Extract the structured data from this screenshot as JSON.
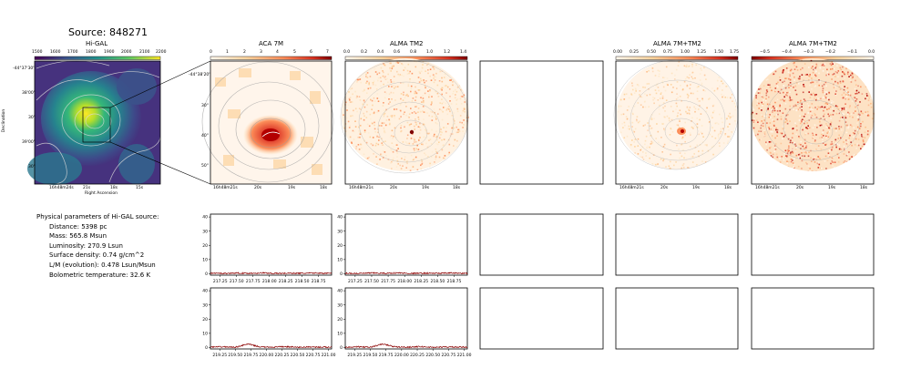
{
  "figure": {
    "title": "Source: 848271"
  },
  "panels": {
    "higal": {
      "title": "Hi-GAL",
      "xlabel": "Right Ascension",
      "ylabel": "Declination",
      "xticks": [
        "16h48m24s",
        "21s",
        "18s",
        "15s"
      ],
      "yticks": [
        "-44°37'30\"",
        "38'00\"",
        "30\"",
        "39'00\"",
        "30\""
      ],
      "colorbar": {
        "ticks": [
          "1500",
          "1600",
          "1700",
          "1800",
          "1900",
          "2000",
          "2100",
          "2200"
        ],
        "cmap": "viridis"
      }
    },
    "aca7m": {
      "title": "ACA 7M",
      "xticks": [
        "16h48m21s",
        "20s",
        "19s",
        "18s"
      ],
      "yticks": [
        "-44°38'20\"",
        "30\"",
        "40\"",
        "50\""
      ],
      "colorbar": {
        "ticks": [
          "0",
          "1",
          "2",
          "3",
          "4",
          "5",
          "6",
          "7"
        ],
        "cmap": "OrRd"
      }
    },
    "almatm2": {
      "title": "ALMA TM2",
      "xticks": [
        "16h48m21s",
        "20s",
        "19s",
        "18s"
      ],
      "colorbar": {
        "ticks": [
          "0.0",
          "0.2",
          "0.4",
          "0.6",
          "0.8",
          "1.0",
          "1.2",
          "1.4"
        ],
        "cmap": "OrRd"
      }
    },
    "alma7mtm2_a": {
      "title": "ALMA 7M+TM2",
      "xticks": [
        "16h48m21s",
        "20s",
        "19s",
        "18s"
      ],
      "colorbar": {
        "ticks": [
          "0.00",
          "0.25",
          "0.50",
          "0.75",
          "1.00",
          "1.25",
          "1.50",
          "1.75"
        ],
        "cmap": "OrRd"
      }
    },
    "alma7mtm2_b": {
      "title": "ALMA 7M+TM2",
      "xticks": [
        "16h48m21s",
        "20s",
        "19s",
        "18s"
      ],
      "colorbar": {
        "ticks": [
          "−0.5",
          "−0.4",
          "−0.3",
          "−0.2",
          "−0.1",
          "0.0"
        ],
        "cmap": "OrRd_r"
      }
    }
  },
  "info": {
    "heading": "Physical parameters of Hi-GAL source:",
    "lines": [
      "Distance: 5398 pc",
      "Mass: 565.8 Msun",
      "Luminosity: 270.9 Lsun",
      "Surface density: 0.74 g/cm^2",
      "L/M (evolution): 0.478 Lsun/Msun",
      "Bolometric temperature: 32.6 K"
    ]
  },
  "colors": {
    "spectrum": "#8b0000",
    "contour": "#b0b0b0",
    "hot": "#b2182b",
    "warm": "#fc8d59"
  },
  "chart_data": [
    {
      "type": "line",
      "name": "spectrum-row1",
      "xticks": [
        "217.25",
        "217.50",
        "217.75",
        "218.00",
        "218.25",
        "218.50",
        "218.75"
      ],
      "yticks": [
        "0",
        "10",
        "20",
        "30",
        "40"
      ],
      "x": [
        217.1,
        217.3,
        217.5,
        217.7,
        217.9,
        218.1,
        218.3,
        218.5,
        218.7,
        218.9
      ],
      "y": [
        0.4,
        0.2,
        0.5,
        0.3,
        0.6,
        0.2,
        0.4,
        0.3,
        0.5,
        0.3
      ],
      "xlim": [
        217.1,
        218.95
      ],
      "ylim": [
        -1,
        42
      ]
    },
    {
      "type": "line",
      "name": "spectrum-row2",
      "xticks": [
        "219.25",
        "219.50",
        "219.75",
        "220.00",
        "220.25",
        "220.50",
        "220.75",
        "221.00"
      ],
      "yticks": [
        "0",
        "10",
        "20",
        "30",
        "40"
      ],
      "x": [
        219.1,
        219.3,
        219.5,
        219.7,
        219.9,
        220.1,
        220.3,
        220.5,
        220.7,
        220.9
      ],
      "y": [
        0.3,
        0.5,
        0.2,
        2.5,
        0.4,
        0.3,
        0.6,
        0.2,
        0.4,
        0.3
      ],
      "xlim": [
        219.1,
        221.05
      ],
      "ylim": [
        -1,
        42
      ]
    }
  ]
}
